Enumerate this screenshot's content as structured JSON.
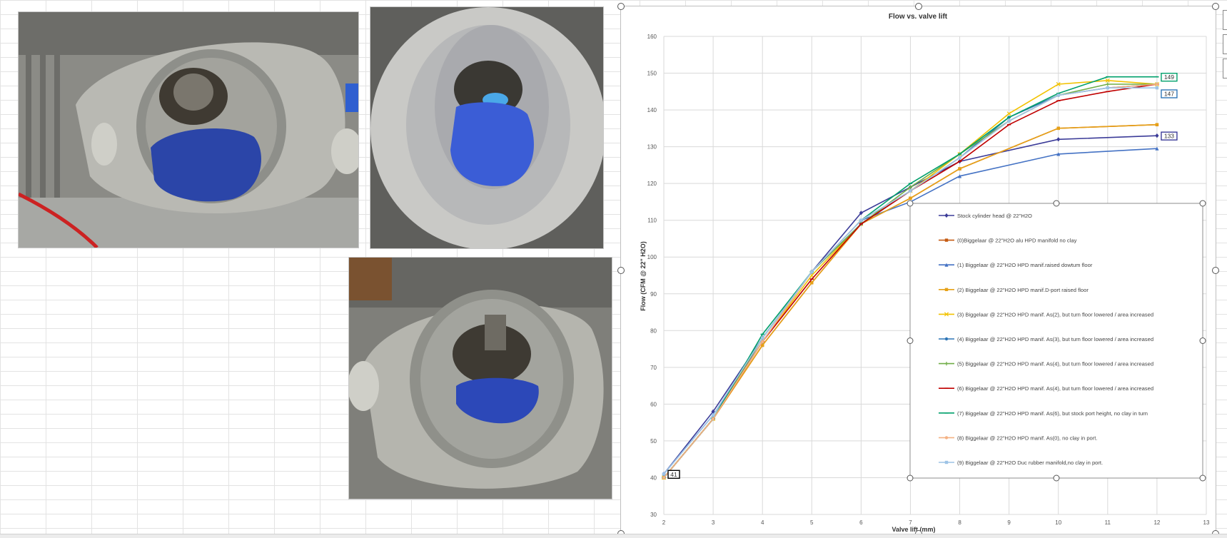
{
  "chart_data": {
    "type": "line",
    "title": "Flow vs. valve lift",
    "xlabel": "Valve lift (mm)",
    "ylabel": "Flow (CFM @ 22\" H2O)",
    "xlim": [
      2,
      13
    ],
    "ylim": [
      30,
      160
    ],
    "xticks": [
      2,
      3,
      4,
      5,
      6,
      7,
      8,
      9,
      10,
      11,
      12,
      13
    ],
    "yticks": [
      30,
      40,
      50,
      60,
      70,
      80,
      90,
      100,
      110,
      120,
      130,
      140,
      150,
      160
    ],
    "grid": true,
    "legend_position": "lower-right",
    "series": [
      {
        "name": "Stock cylinder head @ 22\"H2O",
        "color": "#3b3b98",
        "marker": "diamond",
        "x": [
          2,
          3,
          4,
          5,
          6,
          7,
          8,
          10,
          12
        ],
        "y": [
          41,
          58,
          78,
          96,
          112,
          119,
          126,
          132,
          133
        ]
      },
      {
        "name": "(0)Biggelaar @ 22\"H2O alu HPD manifold no clay",
        "color": "#c55a11",
        "marker": "square",
        "x": [
          2,
          3,
          4,
          5,
          6,
          7,
          8,
          10,
          12
        ],
        "y": [
          40,
          56,
          76,
          93,
          109,
          116,
          124,
          135,
          136
        ]
      },
      {
        "name": "(1) Biggelaar @ 22\"H2O HPD manif.raised dowtum floor",
        "color": "#4472c4",
        "marker": "triangle",
        "x": [
          2,
          3,
          4,
          5,
          6,
          7,
          8,
          10,
          12
        ],
        "y": [
          41,
          57,
          77,
          96,
          110,
          115,
          122,
          128,
          129.5
        ]
      },
      {
        "name": "(2) Biggelaar @ 22\"H2O HPD manif.D-port raised floor",
        "color": "#e6a117",
        "marker": "square",
        "x": [
          2,
          3,
          4,
          5,
          6,
          7,
          8,
          10,
          12
        ],
        "y": [
          40,
          56,
          76,
          93,
          109,
          116,
          124,
          135,
          136
        ]
      },
      {
        "name": "(3) Biggelaar @ 22\"H2O HPD manif. As(2), but turn floor lowered / area increased",
        "color": "#f2c200",
        "marker": "x",
        "x": [
          2,
          3,
          4,
          5,
          6,
          7,
          8,
          9,
          10,
          11,
          12
        ],
        "y": [
          40,
          56,
          77,
          95,
          109,
          118,
          128,
          139,
          147,
          148,
          147
        ]
      },
      {
        "name": "(4) Biggelaar @ 22\"H2O HPD manif. As(3), but turn floor lowered / area increased",
        "color": "#2e75b6",
        "marker": "circle",
        "x": [
          2,
          3,
          4,
          5,
          6,
          7,
          8,
          9,
          10,
          11,
          12
        ],
        "y": [
          40,
          56,
          78,
          96,
          109,
          118,
          127,
          138,
          144,
          146,
          147
        ]
      },
      {
        "name": "(5) Biggelaar @ 22\"H2O HPD manif. As(4), but turn floor lowered / area increased",
        "color": "#70ad47",
        "marker": "plus",
        "x": [
          2,
          3,
          4,
          5,
          6,
          7,
          8,
          9,
          10,
          11,
          12
        ],
        "y": [
          40,
          56,
          78,
          96,
          109,
          119,
          128,
          137,
          144,
          147,
          147
        ]
      },
      {
        "name": "(6) Biggelaar @ 22\"H2O HPD manif. As(4), but turn floor lowered / area increased",
        "color": "#c00000",
        "marker": "dash",
        "x": [
          2,
          3,
          4,
          5,
          6,
          7,
          8,
          9,
          10,
          11,
          12
        ],
        "y": [
          40,
          56,
          77,
          94,
          109,
          118,
          126,
          136,
          142.5,
          145,
          147
        ]
      },
      {
        "name": "(7) Biggelaar @ 22\"H2O HPD manif. As(6), but stock port height, no clay in turn",
        "color": "#00a06b",
        "marker": "dash",
        "x": [
          2,
          3,
          4,
          5,
          6,
          7,
          8,
          9,
          10,
          11,
          12
        ],
        "y": [
          40,
          56,
          79,
          96,
          110,
          120,
          128,
          138,
          144.5,
          149,
          149
        ]
      },
      {
        "name": "(8) Biggelaar @ 22\"H2O HPD manif. As(0), no clay in port.",
        "color": "#f4b183",
        "marker": "circle",
        "x": [
          2,
          3,
          4,
          5,
          6,
          7,
          8,
          9,
          10,
          11,
          12
        ],
        "y": [
          40,
          56,
          77,
          96,
          110,
          118,
          127,
          137,
          144,
          146,
          147
        ]
      },
      {
        "name": "(9) Biggelaar @ 22\"H2O Duc rubber manifold,no clay in port.",
        "color": "#9dc3e6",
        "marker": "square",
        "x": [
          2,
          3,
          4,
          5,
          6,
          7,
          8,
          9,
          10,
          11,
          12
        ],
        "y": [
          41,
          57,
          78,
          96,
          110,
          118,
          127,
          137,
          144,
          146,
          146
        ]
      }
    ],
    "data_labels": [
      {
        "text": "149",
        "x": 12,
        "y": 149,
        "color": "#00a06b"
      },
      {
        "text": "147",
        "x": 12,
        "y": 147,
        "color": "#2e75b6"
      },
      {
        "text": "133",
        "x": 12,
        "y": 133,
        "color": "#3b3b98"
      },
      {
        "text": "41",
        "x": 2,
        "y": 41,
        "color": "#000000"
      }
    ]
  }
}
